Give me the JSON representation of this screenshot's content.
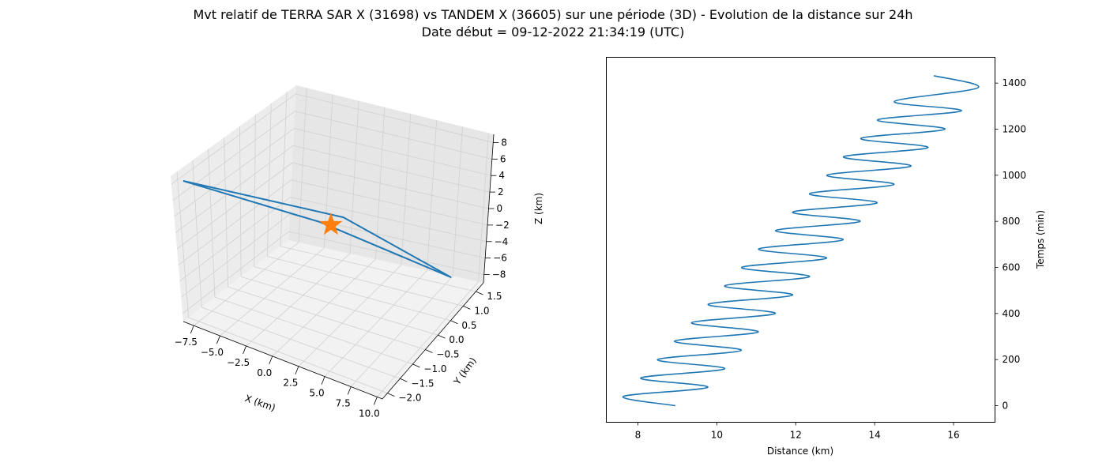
{
  "figure": {
    "title_line1": "Mvt relatif de TERRA SAR X (31698) vs TANDEM X (36605) sur une période (3D) - Evolution de la distance sur 24h",
    "title_line2": "Date début = 09-12-2022 21:34:19 (UTC)"
  },
  "chart_data": [
    {
      "type": "line",
      "projection": "3d",
      "xlabel": "X (km)",
      "ylabel": "Y (km)",
      "zlabel": "Z (km)",
      "xlim": [
        -8.5,
        10.5
      ],
      "ylim": [
        -2.2,
        1.8
      ],
      "zlim": [
        -9,
        9
      ],
      "x_ticks": [
        -7.5,
        -5.0,
        -2.5,
        0.0,
        2.5,
        5.0,
        7.5,
        10.0
      ],
      "y_ticks": [
        -2.0,
        -1.5,
        -1.0,
        -0.5,
        0.0,
        0.5,
        1.0,
        1.5
      ],
      "z_ticks": [
        -8,
        -6,
        -4,
        -2,
        0,
        2,
        4,
        6,
        8
      ],
      "x_tick_labels": [
        "−7.5",
        "−5.0",
        "−2.5",
        "0.0",
        "2.5",
        "5.0",
        "7.5",
        "10.0"
      ],
      "y_tick_labels": [
        "−2.0",
        "−1.5",
        "−1.0",
        "−0.5",
        "0.0",
        "0.5",
        "1.0",
        "1.5"
      ],
      "z_tick_labels": [
        "−8",
        "−6",
        "−4",
        "−2",
        "0",
        "2",
        "4",
        "6",
        "8"
      ],
      "grid": true,
      "series": [
        {
          "color": "#1f77b4",
          "points": [
            [
              -8.0,
              -2.0,
              8.0
            ],
            [
              -1.0,
              0.0,
              0.0
            ],
            [
              8.0,
              1.5,
              -8.0
            ],
            [
              0.4,
              0.3,
              0.2
            ],
            [
              -8.0,
              -2.0,
              8.0
            ]
          ]
        }
      ],
      "marker": {
        "shape": "star",
        "color": "#ff7f0e",
        "point": [
          0,
          0,
          0
        ]
      }
    },
    {
      "type": "line",
      "xlabel": "Distance (km)",
      "ylabel": "Temps (min)",
      "xlim": [
        7.2,
        17.05
      ],
      "ylim": [
        -72,
        1512
      ],
      "x_ticks": [
        8,
        10,
        12,
        14,
        16
      ],
      "y_ticks": [
        0,
        200,
        400,
        600,
        800,
        1000,
        1200,
        1400
      ],
      "x_tick_labels": [
        "8",
        "10",
        "12",
        "14",
        "16"
      ],
      "y_tick_labels": [
        "0",
        "200",
        "400",
        "600",
        "800",
        "1000",
        "1200",
        "1400"
      ],
      "y_axis_position": "right",
      "series": [
        {
          "color": "#1f77b4",
          "x": [
            8.95,
            7.63,
            9.77,
            8.07,
            10.2,
            8.5,
            10.62,
            8.93,
            11.05,
            9.36,
            11.48,
            9.78,
            11.92,
            10.2,
            12.35,
            10.63,
            12.78,
            11.06,
            13.2,
            11.49,
            13.63,
            11.92,
            14.06,
            12.35,
            14.49,
            12.79,
            14.92,
            13.21,
            15.35,
            13.65,
            15.78,
            14.07,
            16.2,
            14.5,
            16.62,
            15.5
          ],
          "y": [
            0,
            40,
            80,
            120,
            160,
            200,
            240,
            280,
            320,
            360,
            400,
            440,
            480,
            520,
            560,
            600,
            640,
            680,
            720,
            760,
            800,
            840,
            880,
            920,
            960,
            1000,
            1040,
            1080,
            1120,
            1160,
            1200,
            1240,
            1280,
            1320,
            1380,
            1432
          ]
        }
      ]
    }
  ]
}
